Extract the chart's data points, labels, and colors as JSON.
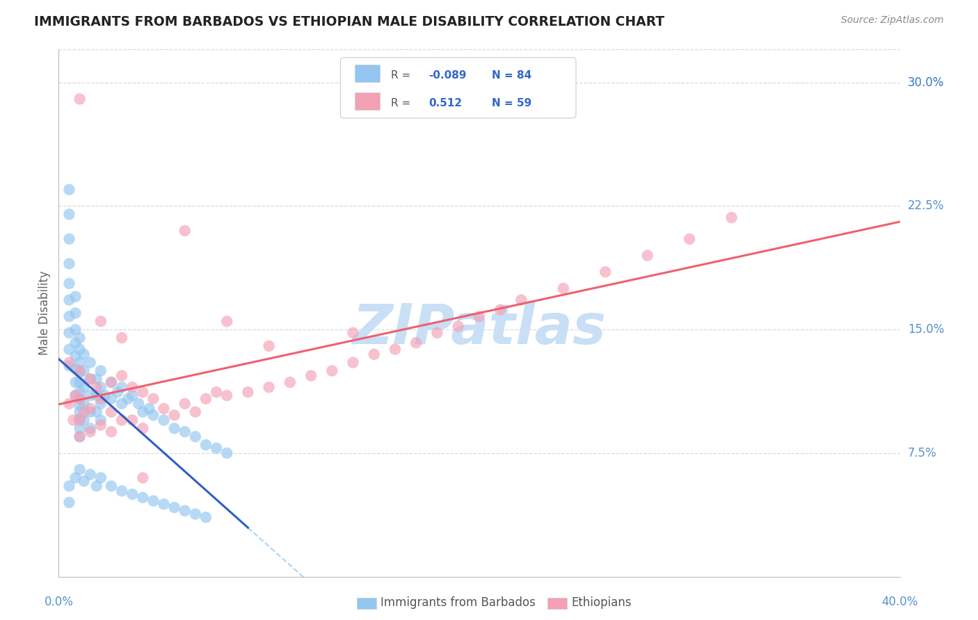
{
  "title": "IMMIGRANTS FROM BARBADOS VS ETHIOPIAN MALE DISABILITY CORRELATION CHART",
  "source": "Source: ZipAtlas.com",
  "ylabel": "Male Disability",
  "ytick_vals": [
    0.075,
    0.15,
    0.225,
    0.3
  ],
  "ytick_labels": [
    "7.5%",
    "15.0%",
    "22.5%",
    "30.0%"
  ],
  "xlim": [
    0.0,
    0.4
  ],
  "ylim": [
    0.0,
    0.32
  ],
  "blue_color": "#93c6f0",
  "pink_color": "#f4a0b5",
  "blue_line_color": "#3060c0",
  "pink_line_color": "#f06070",
  "dashed_line_color": "#a8d4f5",
  "watermark_color": "#c8dff5",
  "background_color": "#ffffff",
  "grid_color": "#d8d8d8",
  "tick_color": "#5590d0",
  "blue_scatter_x": [
    0.005,
    0.005,
    0.005,
    0.005,
    0.005,
    0.005,
    0.005,
    0.005,
    0.005,
    0.005,
    0.008,
    0.008,
    0.008,
    0.008,
    0.008,
    0.008,
    0.008,
    0.008,
    0.01,
    0.01,
    0.01,
    0.01,
    0.01,
    0.01,
    0.01,
    0.01,
    0.01,
    0.01,
    0.01,
    0.01,
    0.012,
    0.012,
    0.012,
    0.012,
    0.012,
    0.015,
    0.015,
    0.015,
    0.015,
    0.015,
    0.018,
    0.018,
    0.018,
    0.02,
    0.02,
    0.02,
    0.02,
    0.022,
    0.025,
    0.025,
    0.028,
    0.03,
    0.03,
    0.033,
    0.035,
    0.038,
    0.04,
    0.043,
    0.045,
    0.05,
    0.055,
    0.06,
    0.065,
    0.07,
    0.075,
    0.08,
    0.005,
    0.005,
    0.008,
    0.01,
    0.012,
    0.015,
    0.018,
    0.02,
    0.025,
    0.03,
    0.035,
    0.04,
    0.045,
    0.05,
    0.055,
    0.06,
    0.065,
    0.07
  ],
  "blue_scatter_y": [
    0.235,
    0.22,
    0.205,
    0.19,
    0.178,
    0.168,
    0.158,
    0.148,
    0.138,
    0.128,
    0.17,
    0.16,
    0.15,
    0.142,
    0.134,
    0.126,
    0.118,
    0.11,
    0.145,
    0.138,
    0.13,
    0.124,
    0.118,
    0.112,
    0.108,
    0.104,
    0.1,
    0.096,
    0.09,
    0.085,
    0.135,
    0.125,
    0.115,
    0.105,
    0.095,
    0.13,
    0.12,
    0.11,
    0.1,
    0.09,
    0.12,
    0.11,
    0.1,
    0.125,
    0.115,
    0.105,
    0.095,
    0.11,
    0.118,
    0.108,
    0.112,
    0.115,
    0.105,
    0.108,
    0.11,
    0.105,
    0.1,
    0.102,
    0.098,
    0.095,
    0.09,
    0.088,
    0.085,
    0.08,
    0.078,
    0.075,
    0.055,
    0.045,
    0.06,
    0.065,
    0.058,
    0.062,
    0.055,
    0.06,
    0.055,
    0.052,
    0.05,
    0.048,
    0.046,
    0.044,
    0.042,
    0.04,
    0.038,
    0.036
  ],
  "pink_scatter_x": [
    0.005,
    0.005,
    0.007,
    0.008,
    0.01,
    0.01,
    0.01,
    0.01,
    0.012,
    0.015,
    0.015,
    0.015,
    0.018,
    0.02,
    0.02,
    0.025,
    0.025,
    0.025,
    0.03,
    0.03,
    0.035,
    0.035,
    0.04,
    0.04,
    0.045,
    0.05,
    0.055,
    0.06,
    0.065,
    0.07,
    0.075,
    0.08,
    0.09,
    0.1,
    0.11,
    0.12,
    0.13,
    0.14,
    0.15,
    0.16,
    0.17,
    0.18,
    0.19,
    0.2,
    0.21,
    0.22,
    0.24,
    0.26,
    0.28,
    0.3,
    0.32,
    0.01,
    0.02,
    0.03,
    0.04,
    0.06,
    0.08,
    0.1,
    0.14
  ],
  "pink_scatter_y": [
    0.13,
    0.105,
    0.095,
    0.11,
    0.125,
    0.108,
    0.095,
    0.085,
    0.1,
    0.12,
    0.102,
    0.088,
    0.115,
    0.108,
    0.092,
    0.118,
    0.1,
    0.088,
    0.122,
    0.095,
    0.115,
    0.095,
    0.112,
    0.09,
    0.108,
    0.102,
    0.098,
    0.105,
    0.1,
    0.108,
    0.112,
    0.11,
    0.112,
    0.115,
    0.118,
    0.122,
    0.125,
    0.13,
    0.135,
    0.138,
    0.142,
    0.148,
    0.152,
    0.158,
    0.162,
    0.168,
    0.175,
    0.185,
    0.195,
    0.205,
    0.218,
    0.29,
    0.155,
    0.145,
    0.06,
    0.21,
    0.155,
    0.14,
    0.148
  ]
}
